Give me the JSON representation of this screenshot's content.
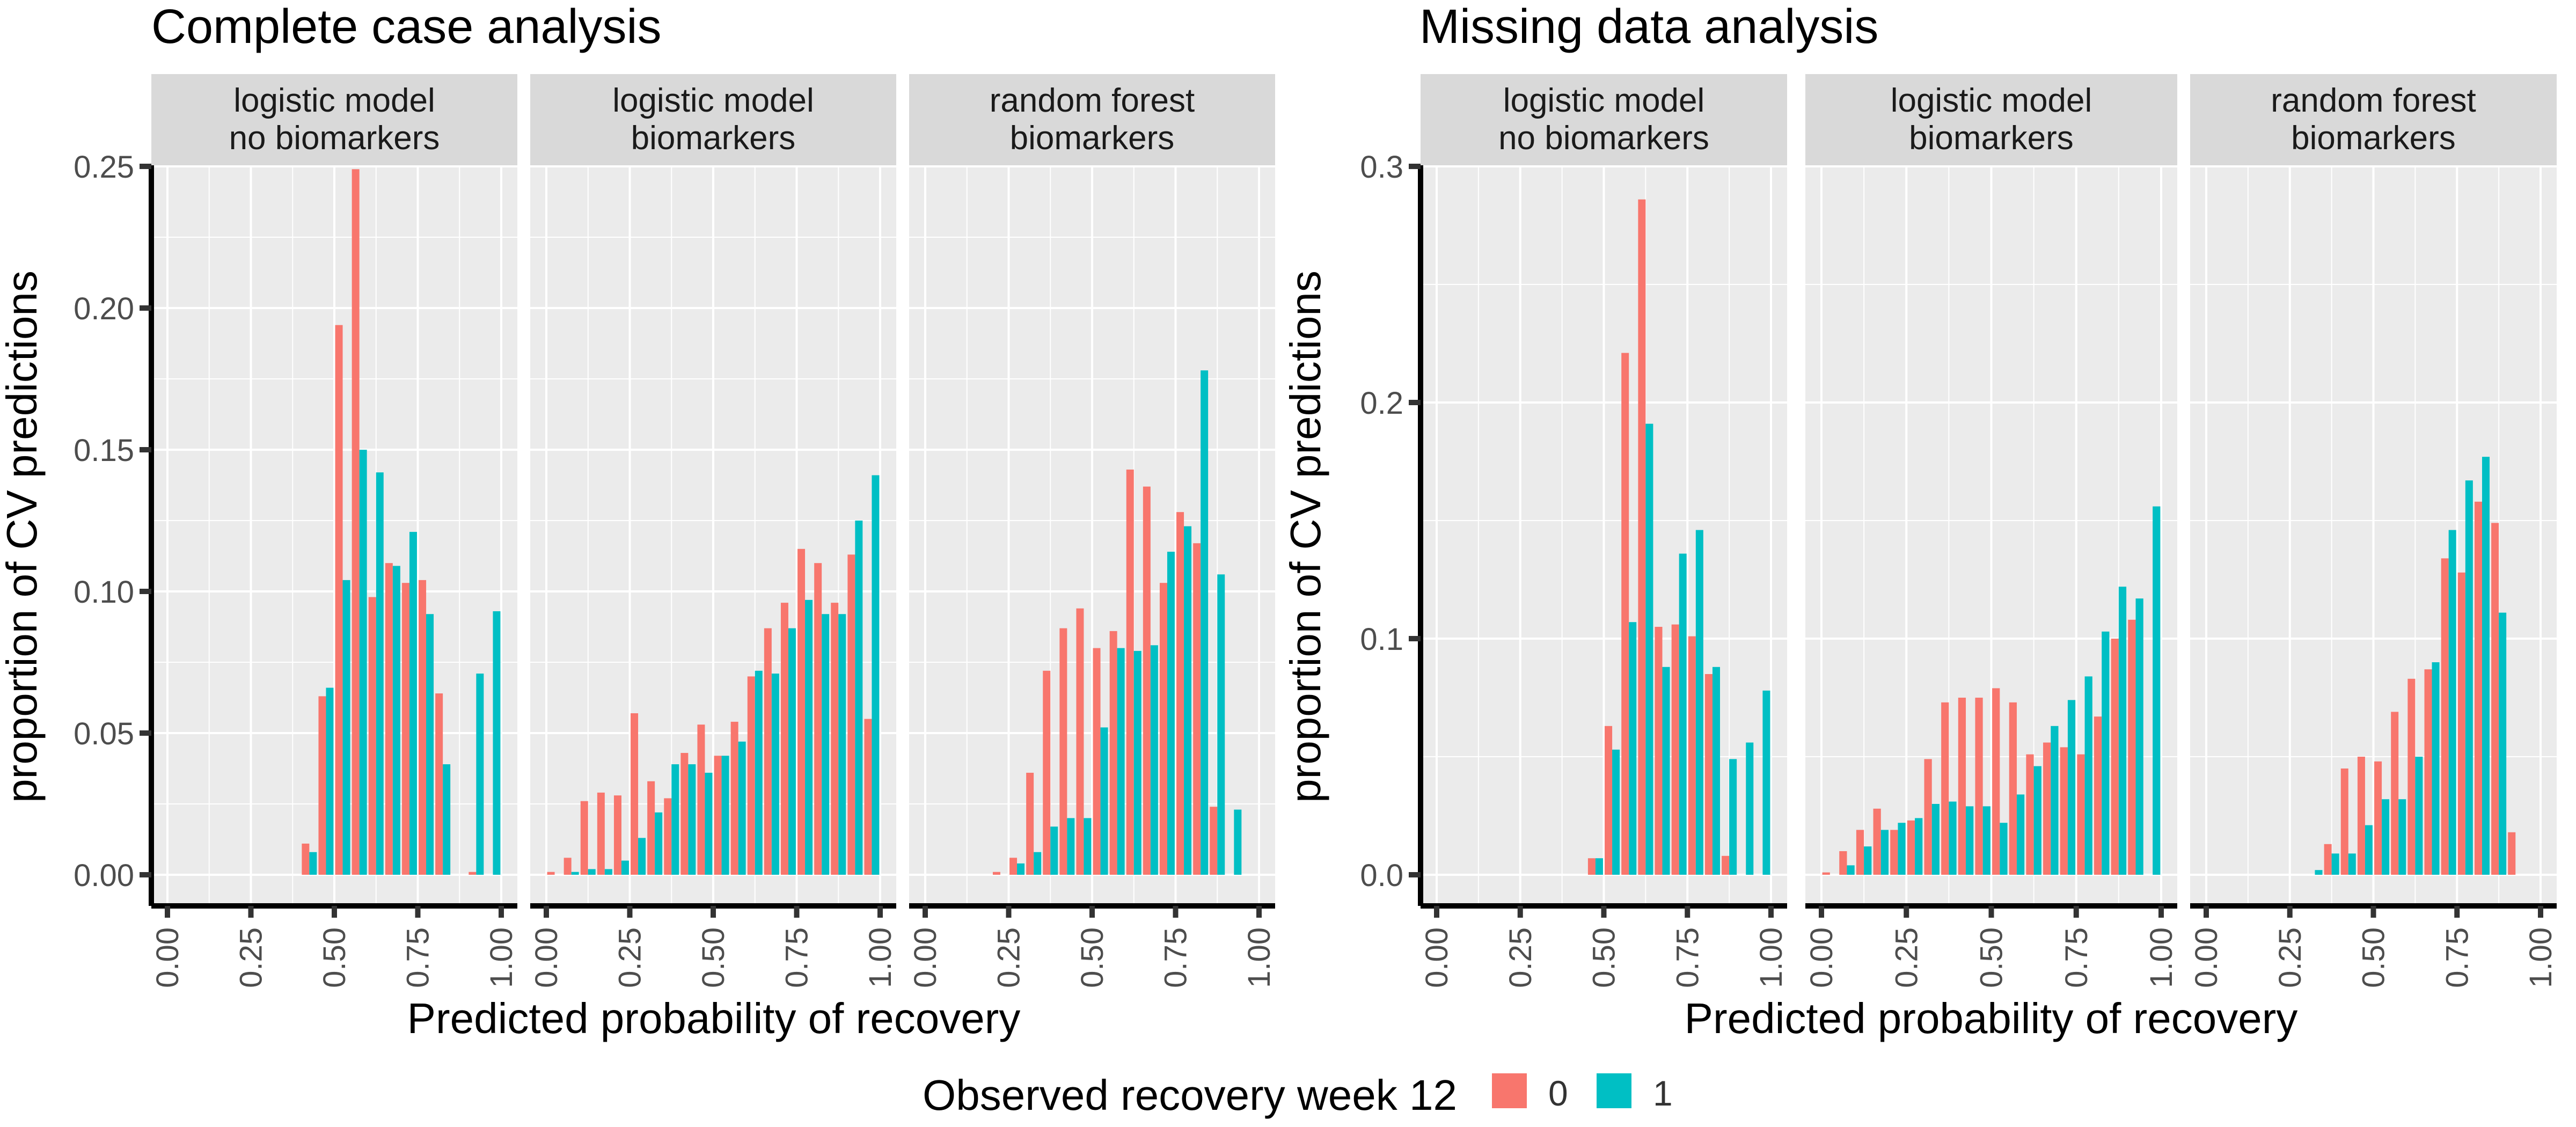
{
  "colors": {
    "outcome_0": "#F8766D",
    "outcome_1": "#00BFC4",
    "panel_bg": "#EBEBEB",
    "strip_bg": "#D9D9D9",
    "grid": "#FFFFFF"
  },
  "legend": {
    "title": "Observed recovery week 12",
    "items": [
      {
        "label": "0",
        "color": "#F8766D"
      },
      {
        "label": "1",
        "color": "#00BFC4"
      }
    ]
  },
  "chart_data": [
    {
      "type": "bar",
      "title": "Complete case analysis",
      "xlabel": "Predicted probability of recovery",
      "ylabel": "proportion of CV predictions",
      "xlim": [
        0,
        1
      ],
      "ylim": [
        0,
        0.25
      ],
      "x_ticks": [
        "0.00",
        "0.25",
        "0.50",
        "0.75",
        "1.00"
      ],
      "y_ticks": [
        "0.00",
        "0.05",
        "0.10",
        "0.15",
        "0.20",
        "0.25"
      ],
      "y_tick_values": [
        0,
        0.05,
        0.1,
        0.15,
        0.2,
        0.25
      ],
      "bin_centers": [
        0.025,
        0.075,
        0.125,
        0.175,
        0.225,
        0.275,
        0.325,
        0.375,
        0.425,
        0.475,
        0.525,
        0.575,
        0.625,
        0.675,
        0.725,
        0.775,
        0.825,
        0.875,
        0.925,
        0.975
      ],
      "facets": [
        {
          "label_line1": "logistic model",
          "label_line2": "no biomarkers",
          "series": [
            {
              "name": "0",
              "values": [
                0,
                0,
                0,
                0,
                0,
                0,
                0,
                0,
                0.011,
                0.063,
                0.194,
                0.249,
                0.098,
                0.11,
                0.103,
                0.104,
                0.064,
                0.0,
                0.001,
                0
              ]
            },
            {
              "name": "1",
              "values": [
                0,
                0,
                0,
                0,
                0,
                0,
                0,
                0,
                0.008,
                0.066,
                0.104,
                0.15,
                0.142,
                0.109,
                0.121,
                0.092,
                0.039,
                0.0,
                0.071,
                0.093
              ]
            }
          ]
        },
        {
          "label_line1": "logistic model",
          "label_line2": "biomarkers",
          "series": [
            {
              "name": "0",
              "values": [
                0.001,
                0.006,
                0.026,
                0.029,
                0.028,
                0.057,
                0.033,
                0.027,
                0.043,
                0.053,
                0.042,
                0.054,
                0.07,
                0.087,
                0.096,
                0.115,
                0.11,
                0.096,
                0.113,
                0.055
              ]
            },
            {
              "name": "1",
              "values": [
                0.0,
                0.001,
                0.002,
                0.002,
                0.005,
                0.013,
                0.022,
                0.039,
                0.039,
                0.036,
                0.042,
                0.047,
                0.072,
                0.071,
                0.087,
                0.097,
                0.092,
                0.092,
                0.125,
                0.141
              ]
            }
          ]
        },
        {
          "label_line1": "random forest",
          "label_line2": "biomarkers",
          "series": [
            {
              "name": "0",
              "values": [
                0,
                0,
                0,
                0,
                0.001,
                0.006,
                0.036,
                0.072,
                0.087,
                0.094,
                0.08,
                0.086,
                0.143,
                0.137,
                0.103,
                0.128,
                0.117,
                0.024,
                0.0,
                0
              ]
            },
            {
              "name": "1",
              "values": [
                0,
                0,
                0,
                0,
                0,
                0.004,
                0.008,
                0.017,
                0.02,
                0.02,
                0.052,
                0.08,
                0.079,
                0.081,
                0.114,
                0.123,
                0.178,
                0.106,
                0.023,
                0
              ]
            }
          ]
        }
      ]
    },
    {
      "type": "bar",
      "title": "Missing data analysis",
      "xlabel": "Predicted probability of recovery",
      "ylabel": "proportion of CV predictions",
      "xlim": [
        0,
        1
      ],
      "ylim": [
        0,
        0.3
      ],
      "x_ticks": [
        "0.00",
        "0.25",
        "0.50",
        "0.75",
        "1.00"
      ],
      "y_ticks": [
        "0.0",
        "0.1",
        "0.2",
        "0.3"
      ],
      "y_tick_values": [
        0,
        0.1,
        0.2,
        0.3
      ],
      "bin_centers": [
        0.025,
        0.075,
        0.125,
        0.175,
        0.225,
        0.275,
        0.325,
        0.375,
        0.425,
        0.475,
        0.525,
        0.575,
        0.625,
        0.675,
        0.725,
        0.775,
        0.825,
        0.875,
        0.925,
        0.975
      ],
      "facets": [
        {
          "label_line1": "logistic model",
          "label_line2": "no biomarkers",
          "series": [
            {
              "name": "0",
              "values": [
                0,
                0,
                0,
                0,
                0,
                0,
                0,
                0,
                0,
                0.007,
                0.063,
                0.221,
                0.286,
                0.105,
                0.106,
                0.101,
                0.085,
                0.008,
                0,
                0
              ]
            },
            {
              "name": "1",
              "values": [
                0,
                0,
                0,
                0,
                0,
                0,
                0,
                0,
                0,
                0.007,
                0.053,
                0.107,
                0.191,
                0.088,
                0.136,
                0.146,
                0.088,
                0.049,
                0.056,
                0.078
              ]
            }
          ]
        },
        {
          "label_line1": "logistic model",
          "label_line2": "biomarkers",
          "series": [
            {
              "name": "0",
              "values": [
                0.001,
                0.01,
                0.019,
                0.028,
                0.019,
                0.023,
                0.049,
                0.073,
                0.075,
                0.075,
                0.079,
                0.073,
                0.051,
                0.056,
                0.054,
                0.051,
                0.067,
                0.1,
                0.108,
                0
              ]
            },
            {
              "name": "1",
              "values": [
                0.0,
                0.004,
                0.012,
                0.019,
                0.022,
                0.024,
                0.03,
                0.031,
                0.029,
                0.029,
                0.022,
                0.034,
                0.046,
                0.063,
                0.074,
                0.084,
                0.103,
                0.122,
                0.117,
                0.156
              ]
            }
          ]
        },
        {
          "label_line1": "random forest",
          "label_line2": "biomarkers",
          "series": [
            {
              "name": "0",
              "values": [
                0,
                0,
                0,
                0,
                0,
                0,
                0,
                0.013,
                0.045,
                0.05,
                0.048,
                0.069,
                0.083,
                0.087,
                0.134,
                0.128,
                0.158,
                0.149,
                0.018,
                0
              ]
            },
            {
              "name": "1",
              "values": [
                0,
                0,
                0,
                0,
                0,
                0,
                0.002,
                0.009,
                0.009,
                0.021,
                0.032,
                0.032,
                0.05,
                0.09,
                0.146,
                0.167,
                0.177,
                0.111,
                0,
                0
              ]
            }
          ]
        }
      ]
    }
  ]
}
